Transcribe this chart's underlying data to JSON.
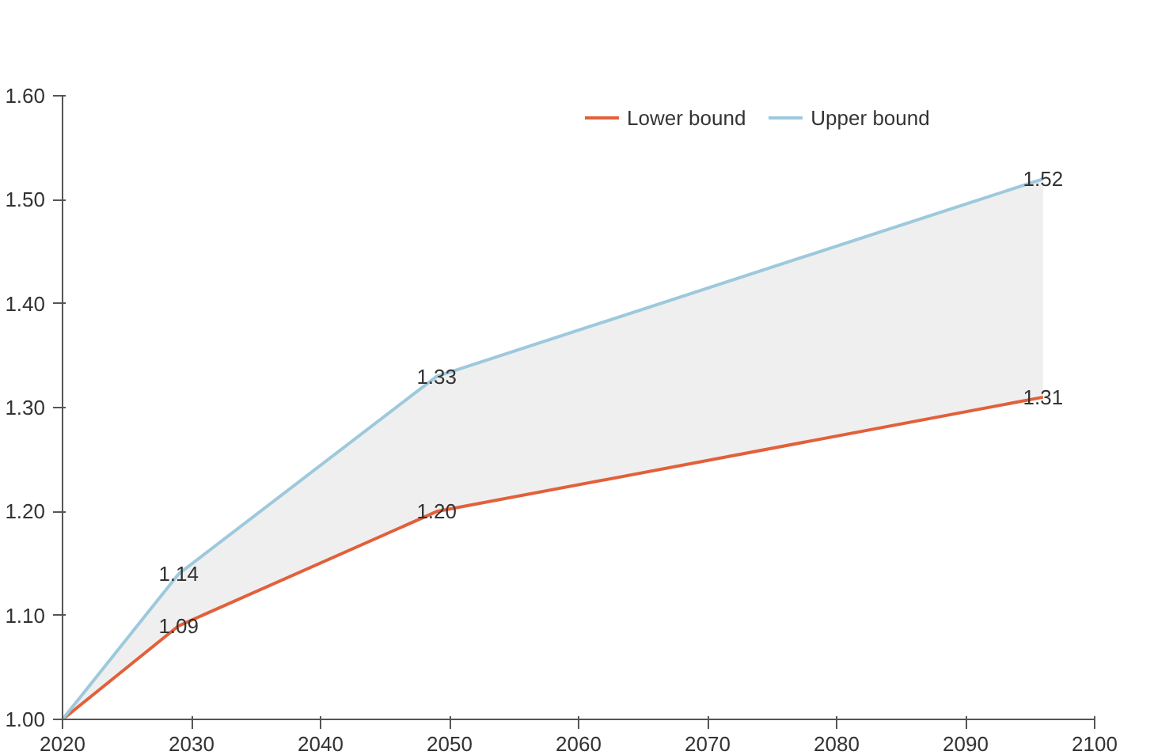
{
  "chart_data": {
    "type": "line",
    "x": [
      2020,
      2029,
      2049,
      2096
    ],
    "series": [
      {
        "name": "Lower bound",
        "color": "#e2603a",
        "values": [
          1.0,
          1.09,
          1.2,
          1.31
        ],
        "value_labels": [
          null,
          "1.09",
          "1.20",
          "1.31"
        ]
      },
      {
        "name": "Upper bound",
        "color": "#9dc9dc",
        "values": [
          1.0,
          1.14,
          1.33,
          1.52
        ],
        "value_labels": [
          null,
          "1.14",
          "1.33",
          "1.52"
        ],
        "lower": [
          1.0,
          1.09,
          1.2,
          1.31
        ],
        "upper": [
          1.0,
          1.14,
          1.33,
          1.52
        ]
      }
    ],
    "xlim": [
      2020,
      2100
    ],
    "xticks": [
      2020,
      2030,
      2040,
      2050,
      2060,
      2070,
      2080,
      2090,
      2100
    ],
    "ylim": [
      1.0,
      1.6
    ],
    "yticks": [
      {
        "value": 1.0,
        "label": "1.00"
      },
      {
        "value": 1.1,
        "label": "1.10"
      },
      {
        "value": 1.2,
        "label": "1.20"
      },
      {
        "value": 1.3,
        "label": "1.30"
      },
      {
        "value": 1.4,
        "label": "1.40"
      },
      {
        "value": 1.5,
        "label": "1.50"
      },
      {
        "value": 1.6,
        "label": "1.60"
      }
    ],
    "grid": false,
    "legend": "top right"
  }
}
